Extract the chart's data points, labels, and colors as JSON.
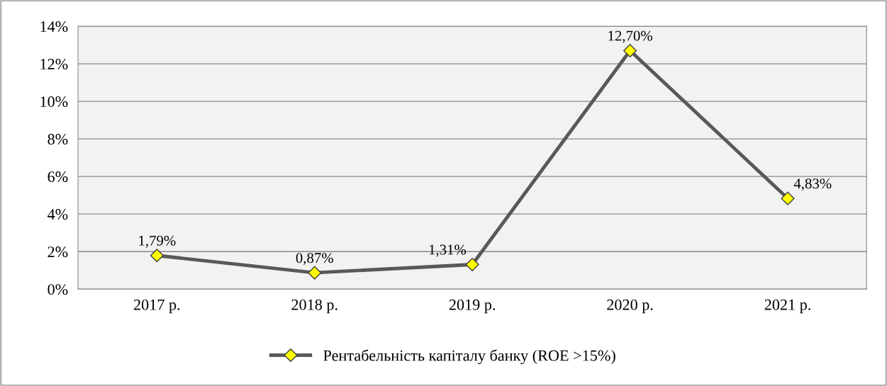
{
  "chart_data": {
    "type": "line",
    "categories": [
      "2017 р.",
      "2018 р.",
      "2019 р.",
      "2020 р.",
      "2021 р."
    ],
    "series": [
      {
        "name": "Рентабельність капіталу банку (ROE >15%)",
        "color": "#595959",
        "values": [
          1.79,
          0.87,
          1.31,
          12.7,
          4.83
        ],
        "value_labels": [
          "1,79%",
          "0,87%",
          "1,31%",
          "12,70%",
          "4,83%"
        ]
      }
    ],
    "ylim": [
      0,
      14
    ],
    "yticks": [
      {
        "value": 0,
        "label": "0%"
      },
      {
        "value": 2,
        "label": "2%"
      },
      {
        "value": 4,
        "label": "4%"
      },
      {
        "value": 6,
        "label": "6%"
      },
      {
        "value": 8,
        "label": "8%"
      },
      {
        "value": 10,
        "label": "10%"
      },
      {
        "value": 12,
        "label": "12%"
      },
      {
        "value": 14,
        "label": "14%"
      }
    ],
    "grid": "y",
    "legend": "bottom",
    "marker": "diamond",
    "line_style": "solid"
  }
}
